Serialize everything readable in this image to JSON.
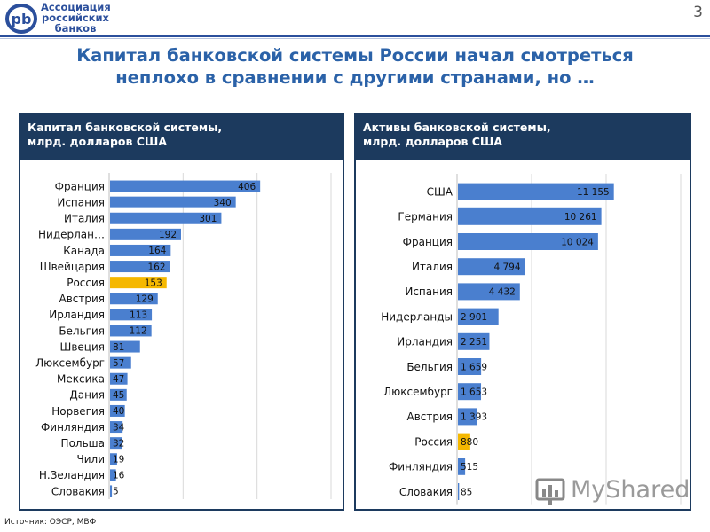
{
  "header": {
    "logo_lines": [
      "Ассоциация",
      "российских",
      "банков"
    ],
    "logo_mark": "pb",
    "page_number": "3",
    "title_line1": "Капитал банковской системы России начал смотреться",
    "title_line2": "неплохо в сравнении с другими странами, но …"
  },
  "footer": {
    "source": "Источник: ОЭСР, МВФ"
  },
  "watermark": {
    "text": "MyShared"
  },
  "colors": {
    "bar": "#4a7fcf",
    "highlight": "#f5b800",
    "panel_header": "#1c3a5e",
    "title": "#2b62a8"
  },
  "chart_data": [
    {
      "type": "bar",
      "orientation": "horizontal",
      "title_line1": "Капитал банковской системы,",
      "title_line2": "млрд. долларов США",
      "categories": [
        "Франция",
        "Испания",
        "Италия",
        "Нидерлан…",
        "Канада",
        "Швейцария",
        "Россия",
        "Австрия",
        "Ирландия",
        "Бельгия",
        "Швеция",
        "Люксембург",
        "Мексика",
        "Дания",
        "Норвегия",
        "Финляндия",
        "Польша",
        "Чили",
        "Н.Зеландия",
        "Словакия"
      ],
      "values": [
        406,
        340,
        301,
        192,
        164,
        162,
        153,
        129,
        113,
        112,
        81,
        57,
        47,
        45,
        40,
        34,
        32,
        19,
        16,
        5
      ],
      "value_labels": [
        "406",
        "340",
        "301",
        "192",
        "164",
        "162",
        "153",
        "129",
        "113",
        "112",
        "81",
        "57",
        "47",
        "45",
        "40",
        "34",
        "32",
        "19",
        "16",
        "5"
      ],
      "highlight": "Россия",
      "xlim": [
        0,
        600
      ],
      "grid": true
    },
    {
      "type": "bar",
      "orientation": "horizontal",
      "title_line1": "Активы банковской системы,",
      "title_line2": "млрд. долларов США",
      "categories": [
        "США",
        "Германия",
        "Франция",
        "Италия",
        "Испания",
        "Нидерланды",
        "Ирландия",
        "Бельгия",
        "Люксембург",
        "Австрия",
        "Россия",
        "Финляндия",
        "Словакия"
      ],
      "values": [
        11155,
        10261,
        10024,
        4794,
        4432,
        2901,
        2251,
        1659,
        1653,
        1393,
        880,
        515,
        85
      ],
      "value_labels": [
        "11 155",
        "10 261",
        "10 024",
        "4 794",
        "4 432",
        "2 901",
        "2 251",
        "1 659",
        "1 653",
        "1 393",
        "880",
        "515",
        "85"
      ],
      "highlight": "Россия",
      "xlim": [
        0,
        16000
      ],
      "grid": true
    }
  ]
}
